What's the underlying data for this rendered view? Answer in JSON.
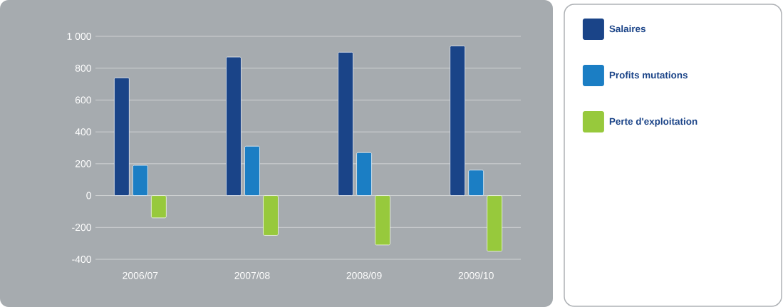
{
  "chart_data": {
    "type": "bar",
    "categories": [
      "2006/07",
      "2007/08",
      "2008/09",
      "2009/10"
    ],
    "series": [
      {
        "name": "Salaires",
        "color": "#1a4488",
        "values": [
          740,
          870,
          900,
          940
        ]
      },
      {
        "name": "Profits mutations",
        "color": "#1b7ec4",
        "values": [
          190,
          310,
          270,
          160
        ]
      },
      {
        "name": "Perte d'exploitation",
        "color": "#97c93c",
        "values": [
          -140,
          -250,
          -310,
          -350
        ]
      }
    ],
    "ylim": [
      -400,
      1000
    ],
    "yticks": [
      -400,
      -200,
      0,
      200,
      400,
      600,
      800,
      {
        "value": 1000,
        "label": "1 000"
      }
    ],
    "grid": "y",
    "legend": "right"
  }
}
